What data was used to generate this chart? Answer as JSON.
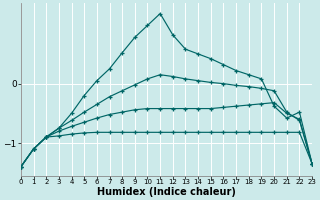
{
  "xlabel": "Humidex (Indice chaleur)",
  "bg_color": "#cceaea",
  "line_color": "#006666",
  "x": [
    0,
    1,
    2,
    3,
    4,
    5,
    6,
    7,
    8,
    9,
    10,
    11,
    12,
    13,
    14,
    15,
    16,
    17,
    18,
    19,
    20,
    21,
    22,
    23
  ],
  "line1": [
    -1.4,
    -1.1,
    -0.9,
    -0.88,
    -0.85,
    -0.83,
    -0.82,
    -0.82,
    -0.82,
    -0.82,
    -0.82,
    -0.82,
    -0.82,
    -0.82,
    -0.82,
    -0.82,
    -0.82,
    -0.82,
    -0.82,
    -0.82,
    -0.82,
    -0.82,
    -0.82,
    -1.35
  ],
  "line2": [
    -1.4,
    -1.1,
    -0.9,
    -0.8,
    -0.72,
    -0.65,
    -0.58,
    -0.52,
    -0.48,
    -0.44,
    -0.42,
    -0.42,
    -0.42,
    -0.42,
    -0.42,
    -0.42,
    -0.4,
    -0.38,
    -0.36,
    -0.34,
    -0.32,
    -0.5,
    -0.6,
    -1.35
  ],
  "line3": [
    -1.4,
    -1.1,
    -0.9,
    -0.75,
    -0.62,
    -0.48,
    -0.35,
    -0.22,
    -0.12,
    -0.02,
    0.08,
    0.15,
    0.12,
    0.08,
    0.05,
    0.02,
    -0.0,
    -0.03,
    -0.05,
    -0.08,
    -0.12,
    -0.48,
    -0.62,
    -1.35
  ],
  "line4": [
    -1.4,
    -1.1,
    -0.9,
    -0.75,
    -0.5,
    -0.2,
    0.05,
    0.25,
    0.52,
    0.78,
    0.98,
    1.18,
    0.82,
    0.58,
    0.5,
    0.42,
    0.32,
    0.22,
    0.15,
    0.08,
    -0.38,
    -0.58,
    -0.48,
    -1.35
  ],
  "ylim": [
    -1.55,
    1.35
  ],
  "yticks": [
    -1,
    0
  ],
  "xlim": [
    0,
    23
  ],
  "xticks": [
    0,
    1,
    2,
    3,
    4,
    5,
    6,
    7,
    8,
    9,
    10,
    11,
    12,
    13,
    14,
    15,
    16,
    17,
    18,
    19,
    20,
    21,
    22,
    23
  ]
}
